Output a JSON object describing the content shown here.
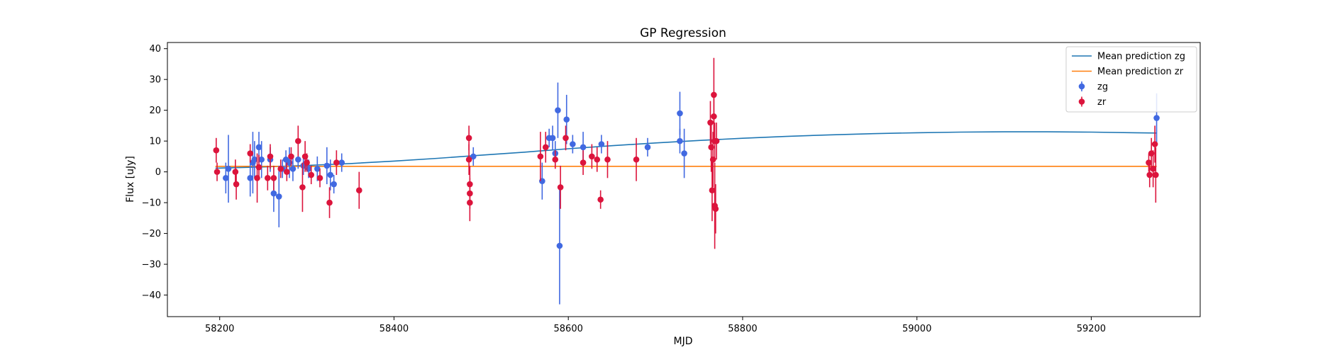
{
  "chart_data": {
    "type": "scatter",
    "title": "GP Regression",
    "xlabel": "MJD",
    "ylabel": "Flux [uJy]",
    "xlim": [
      58140,
      59325
    ],
    "ylim": [
      -47,
      42
    ],
    "xticks": [
      58200,
      58400,
      58600,
      58800,
      59000,
      59200
    ],
    "yticks": [
      -40,
      -30,
      -20,
      -10,
      0,
      10,
      20,
      30,
      40
    ],
    "legend_position": "top-right",
    "grid": false,
    "legend": [
      {
        "label": "Mean prediction zg",
        "kind": "line",
        "color": "#1f77b4"
      },
      {
        "label": "Mean prediction zr",
        "kind": "line",
        "color": "#ff7f0e"
      },
      {
        "label": "zg",
        "kind": "errorbar",
        "color": "#4169e1"
      },
      {
        "label": "zr",
        "kind": "errorbar",
        "color": "#dc143c"
      }
    ],
    "lines": [
      {
        "name": "Mean prediction zg",
        "color": "#1f77b4",
        "x": [
          58195,
          58250,
          58300,
          58350,
          58400,
          58450,
          58500,
          58550,
          58600,
          58650,
          58700,
          58750,
          58800,
          58850,
          58900,
          58950,
          59000,
          59050,
          59100,
          59150,
          59200,
          59250,
          59275
        ],
        "y": [
          1.2,
          1.6,
          2.1,
          2.7,
          3.5,
          4.4,
          5.4,
          6.4,
          7.5,
          8.5,
          9.4,
          10.2,
          10.9,
          11.5,
          12.0,
          12.4,
          12.7,
          12.9,
          13.0,
          13.0,
          12.9,
          12.7,
          12.6
        ]
      },
      {
        "name": "Mean prediction zr",
        "color": "#ff7f0e",
        "x": [
          58195,
          59275
        ],
        "y": [
          1.8,
          1.8
        ]
      }
    ],
    "series": [
      {
        "name": "zg",
        "color": "#4169e1",
        "points": [
          {
            "x": 58207,
            "y": -2,
            "err": 5
          },
          {
            "x": 58210,
            "y": 1,
            "err": 11
          },
          {
            "x": 58235,
            "y": -2,
            "err": 6
          },
          {
            "x": 58238,
            "y": 3,
            "err": 10
          },
          {
            "x": 58240,
            "y": 4,
            "err": 6
          },
          {
            "x": 58245,
            "y": 8,
            "err": 5
          },
          {
            "x": 58248,
            "y": 4,
            "err": 6
          },
          {
            "x": 58258,
            "y": 4,
            "err": 4
          },
          {
            "x": 58262,
            "y": -7,
            "err": 6
          },
          {
            "x": 58268,
            "y": -8,
            "err": 10
          },
          {
            "x": 58272,
            "y": 1,
            "err": 3
          },
          {
            "x": 58276,
            "y": 4,
            "err": 3
          },
          {
            "x": 58280,
            "y": 3,
            "err": 5
          },
          {
            "x": 58284,
            "y": 1,
            "err": 4
          },
          {
            "x": 58290,
            "y": 4,
            "err": 3
          },
          {
            "x": 58296,
            "y": 2,
            "err": 3
          },
          {
            "x": 58302,
            "y": 1,
            "err": 3
          },
          {
            "x": 58312,
            "y": 1,
            "err": 4
          },
          {
            "x": 58323,
            "y": 2,
            "err": 6
          },
          {
            "x": 58327,
            "y": -1,
            "err": 5
          },
          {
            "x": 58331,
            "y": -4,
            "err": 3
          },
          {
            "x": 58340,
            "y": 3,
            "err": 3
          },
          {
            "x": 58491,
            "y": 5,
            "err": 3
          },
          {
            "x": 58570,
            "y": -3,
            "err": 6
          },
          {
            "x": 58578,
            "y": 11,
            "err": 3
          },
          {
            "x": 58582,
            "y": 11,
            "err": 4
          },
          {
            "x": 58585,
            "y": 6,
            "err": 4
          },
          {
            "x": 58588,
            "y": 20,
            "err": 9
          },
          {
            "x": 58590,
            "y": -24,
            "err": 19
          },
          {
            "x": 58598,
            "y": 17,
            "err": 8
          },
          {
            "x": 58605,
            "y": 9,
            "err": 3
          },
          {
            "x": 58617,
            "y": 8,
            "err": 5
          },
          {
            "x": 58638,
            "y": 9,
            "err": 3
          },
          {
            "x": 58691,
            "y": 8,
            "err": 3
          },
          {
            "x": 58728,
            "y": 19,
            "err": 7
          },
          {
            "x": 58728,
            "y": 10,
            "err": 4
          },
          {
            "x": 58733,
            "y": 6,
            "err": 8
          },
          {
            "x": 59275,
            "y": 17.5,
            "err": 8
          }
        ]
      },
      {
        "name": "zr",
        "color": "#dc143c",
        "points": [
          {
            "x": 58196,
            "y": 7,
            "err": 4
          },
          {
            "x": 58197,
            "y": 0,
            "err": 3
          },
          {
            "x": 58218,
            "y": 0,
            "err": 4
          },
          {
            "x": 58219,
            "y": -4,
            "err": 5
          },
          {
            "x": 58235,
            "y": 6,
            "err": 3
          },
          {
            "x": 58243,
            "y": -2,
            "err": 8
          },
          {
            "x": 58245,
            "y": 1.5,
            "err": 4
          },
          {
            "x": 58255,
            "y": -2,
            "err": 4
          },
          {
            "x": 58258,
            "y": 5,
            "err": 4
          },
          {
            "x": 58262,
            "y": -2,
            "err": 4
          },
          {
            "x": 58270,
            "y": 1,
            "err": 3
          },
          {
            "x": 58277,
            "y": 0,
            "err": 3
          },
          {
            "x": 58282,
            "y": 5,
            "err": 3
          },
          {
            "x": 58290,
            "y": 10,
            "err": 5
          },
          {
            "x": 58295,
            "y": -5,
            "err": 8
          },
          {
            "x": 58298,
            "y": 5,
            "err": 5
          },
          {
            "x": 58300,
            "y": 3,
            "err": 3
          },
          {
            "x": 58305,
            "y": -1,
            "err": 3
          },
          {
            "x": 58315,
            "y": -2,
            "err": 3
          },
          {
            "x": 58326,
            "y": -10,
            "err": 5
          },
          {
            "x": 58334,
            "y": 3,
            "err": 4
          },
          {
            "x": 58360,
            "y": -6,
            "err": 6
          },
          {
            "x": 58486,
            "y": 11,
            "err": 4
          },
          {
            "x": 58486,
            "y": 4,
            "err": 5
          },
          {
            "x": 58487,
            "y": -4,
            "err": 6
          },
          {
            "x": 58487,
            "y": -7,
            "err": 5
          },
          {
            "x": 58487,
            "y": -10,
            "err": 6
          },
          {
            "x": 58568,
            "y": 5,
            "err": 8
          },
          {
            "x": 58574,
            "y": 8,
            "err": 5
          },
          {
            "x": 58585,
            "y": 4,
            "err": 3
          },
          {
            "x": 58591,
            "y": -5,
            "err": 7
          },
          {
            "x": 58597,
            "y": 11,
            "err": 4
          },
          {
            "x": 58617,
            "y": 3,
            "err": 4
          },
          {
            "x": 58627,
            "y": 5,
            "err": 4
          },
          {
            "x": 58633,
            "y": 4,
            "err": 4
          },
          {
            "x": 58637,
            "y": -9,
            "err": 3
          },
          {
            "x": 58645,
            "y": 4,
            "err": 6
          },
          {
            "x": 58678,
            "y": 4,
            "err": 7
          },
          {
            "x": 58763,
            "y": 16,
            "err": 7
          },
          {
            "x": 58764,
            "y": 8,
            "err": 8
          },
          {
            "x": 58765,
            "y": -6,
            "err": 10
          },
          {
            "x": 58766,
            "y": 4,
            "err": 9
          },
          {
            "x": 58767,
            "y": 25,
            "err": 12
          },
          {
            "x": 58767,
            "y": 18,
            "err": 8
          },
          {
            "x": 58768,
            "y": 10,
            "err": 6
          },
          {
            "x": 58768,
            "y": -11,
            "err": 14
          },
          {
            "x": 58769,
            "y": -12,
            "err": 8
          },
          {
            "x": 58770,
            "y": 10,
            "err": 6
          },
          {
            "x": 59266,
            "y": 3,
            "err": 3
          },
          {
            "x": 59267,
            "y": -1,
            "err": 4
          },
          {
            "x": 59269,
            "y": 6,
            "err": 5
          },
          {
            "x": 59271,
            "y": 1,
            "err": 6
          },
          {
            "x": 59273,
            "y": 9,
            "err": 6
          },
          {
            "x": 59274,
            "y": -1,
            "err": 9
          }
        ]
      }
    ]
  }
}
